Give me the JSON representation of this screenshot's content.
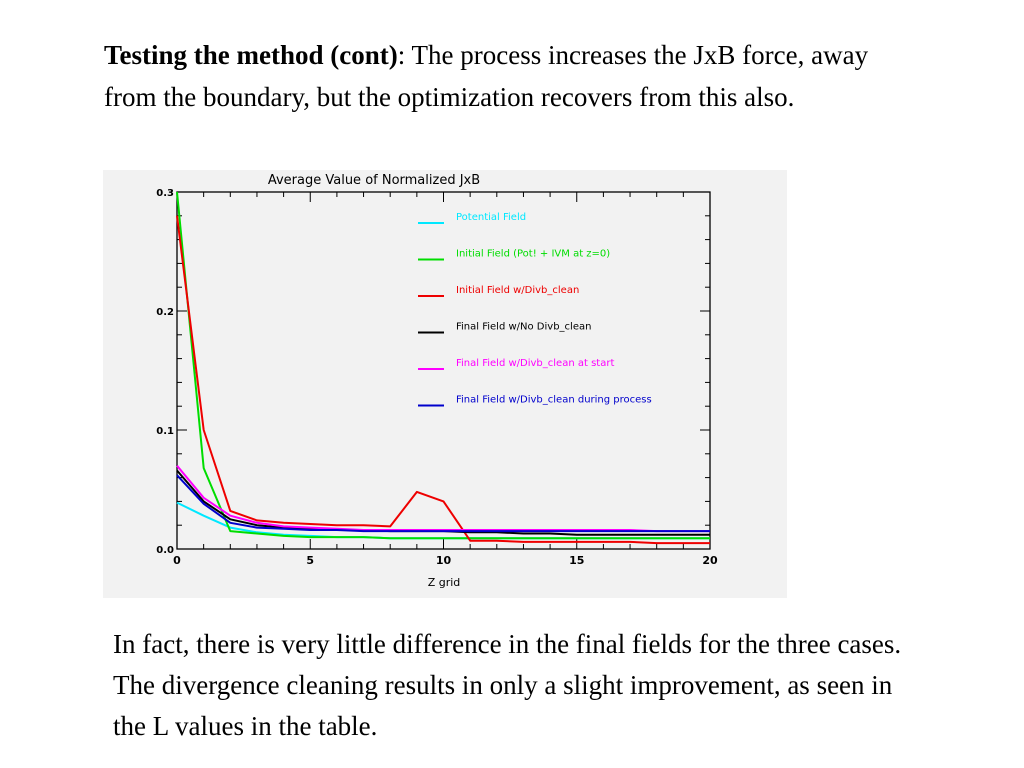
{
  "heading": {
    "bold_part": "Testing the method (cont)",
    "rest": ": The process increases the JxB force, away from the boundary, but the optimization recovers from this also."
  },
  "conclusion": "In fact, there is very little difference in the final fields for the three cases. The divergence cleaning results in only a slight improvement, as seen in the L values in the table.",
  "chart_data": {
    "type": "line",
    "title": "Average Value of Normalized JxB",
    "xlabel": "Z grid",
    "ylabel": "",
    "xlim": [
      0,
      20
    ],
    "ylim": [
      0,
      0.3
    ],
    "xticks": [
      0,
      5,
      10,
      15,
      20
    ],
    "xtick_labels": [
      "0",
      "5",
      "10",
      "15",
      "20"
    ],
    "yticks": [
      0,
      0.1,
      0.2,
      0.3
    ],
    "ytick_labels": [
      "0.0",
      "0.1",
      "0.2",
      "0.3"
    ],
    "grid": false,
    "legend_position": "top-right",
    "background": "#f2f2f2",
    "x": [
      0,
      1,
      2,
      3,
      4,
      5,
      6,
      7,
      8,
      9,
      10,
      11,
      12,
      13,
      14,
      15,
      16,
      17,
      18,
      19,
      20
    ],
    "series": [
      {
        "name": "Potential Field",
        "color": "#00e8ff",
        "values": [
          0.039,
          0.028,
          0.018,
          0.014,
          0.012,
          0.011,
          0.01,
          0.01,
          0.009,
          0.009,
          0.009,
          0.009,
          0.009,
          0.009,
          0.009,
          0.009,
          0.009,
          0.009,
          0.009,
          0.009,
          0.009
        ]
      },
      {
        "name": "Initial Field (Pot! + IVM at z=0)",
        "color": "#00dd00",
        "values": [
          0.3,
          0.068,
          0.015,
          0.013,
          0.011,
          0.01,
          0.01,
          0.01,
          0.009,
          0.009,
          0.009,
          0.009,
          0.009,
          0.009,
          0.009,
          0.009,
          0.009,
          0.009,
          0.009,
          0.009,
          0.009
        ]
      },
      {
        "name": "Initial Field w/Divb_clean",
        "color": "#ee0000",
        "values": [
          0.28,
          0.1,
          0.032,
          0.024,
          0.022,
          0.021,
          0.02,
          0.02,
          0.019,
          0.048,
          0.04,
          0.007,
          0.007,
          0.006,
          0.006,
          0.006,
          0.006,
          0.006,
          0.005,
          0.005,
          0.005
        ]
      },
      {
        "name": "Final Field w/No Divb_clean",
        "color": "#000000",
        "values": [
          0.066,
          0.04,
          0.025,
          0.02,
          0.018,
          0.017,
          0.016,
          0.016,
          0.015,
          0.015,
          0.015,
          0.014,
          0.014,
          0.013,
          0.013,
          0.012,
          0.012,
          0.012,
          0.012,
          0.012,
          0.012
        ]
      },
      {
        "name": "Final Field w/Divb_clean at start",
        "color": "#ff00ff",
        "values": [
          0.07,
          0.043,
          0.028,
          0.022,
          0.019,
          0.018,
          0.017,
          0.016,
          0.016,
          0.016,
          0.016,
          0.016,
          0.016,
          0.016,
          0.016,
          0.016,
          0.016,
          0.016,
          0.015,
          0.015,
          0.015
        ]
      },
      {
        "name": "Final Field w/Divb_clean during process",
        "color": "#0000cc",
        "values": [
          0.062,
          0.038,
          0.022,
          0.018,
          0.017,
          0.016,
          0.016,
          0.015,
          0.015,
          0.015,
          0.015,
          0.015,
          0.015,
          0.015,
          0.015,
          0.015,
          0.015,
          0.015,
          0.015,
          0.015,
          0.015
        ]
      }
    ]
  }
}
